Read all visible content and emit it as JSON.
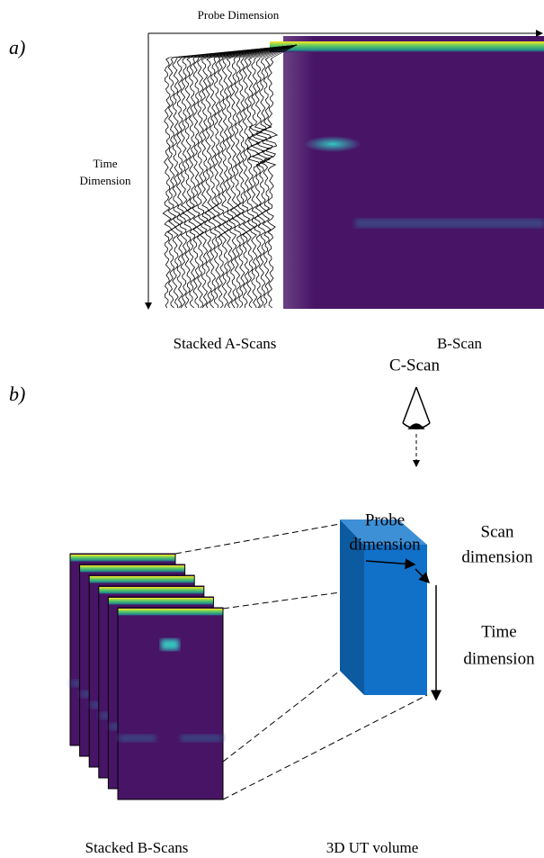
{
  "panel_a": {
    "tag": "a)",
    "x_axis_label": "Probe Dimension",
    "y_axis_label": [
      "Time",
      "Dimension"
    ],
    "left_caption": "Stacked A-Scans",
    "right_caption": "B-Scan"
  },
  "panel_b": {
    "tag": "b)",
    "view_label": "C-Scan",
    "probe_label": [
      "Probe",
      "dimension"
    ],
    "scan_label": [
      "Scan",
      "dimension"
    ],
    "time_label": [
      "Time",
      "dimension"
    ],
    "left_caption": "Stacked B-Scans",
    "right_caption": "3D UT volume"
  }
}
